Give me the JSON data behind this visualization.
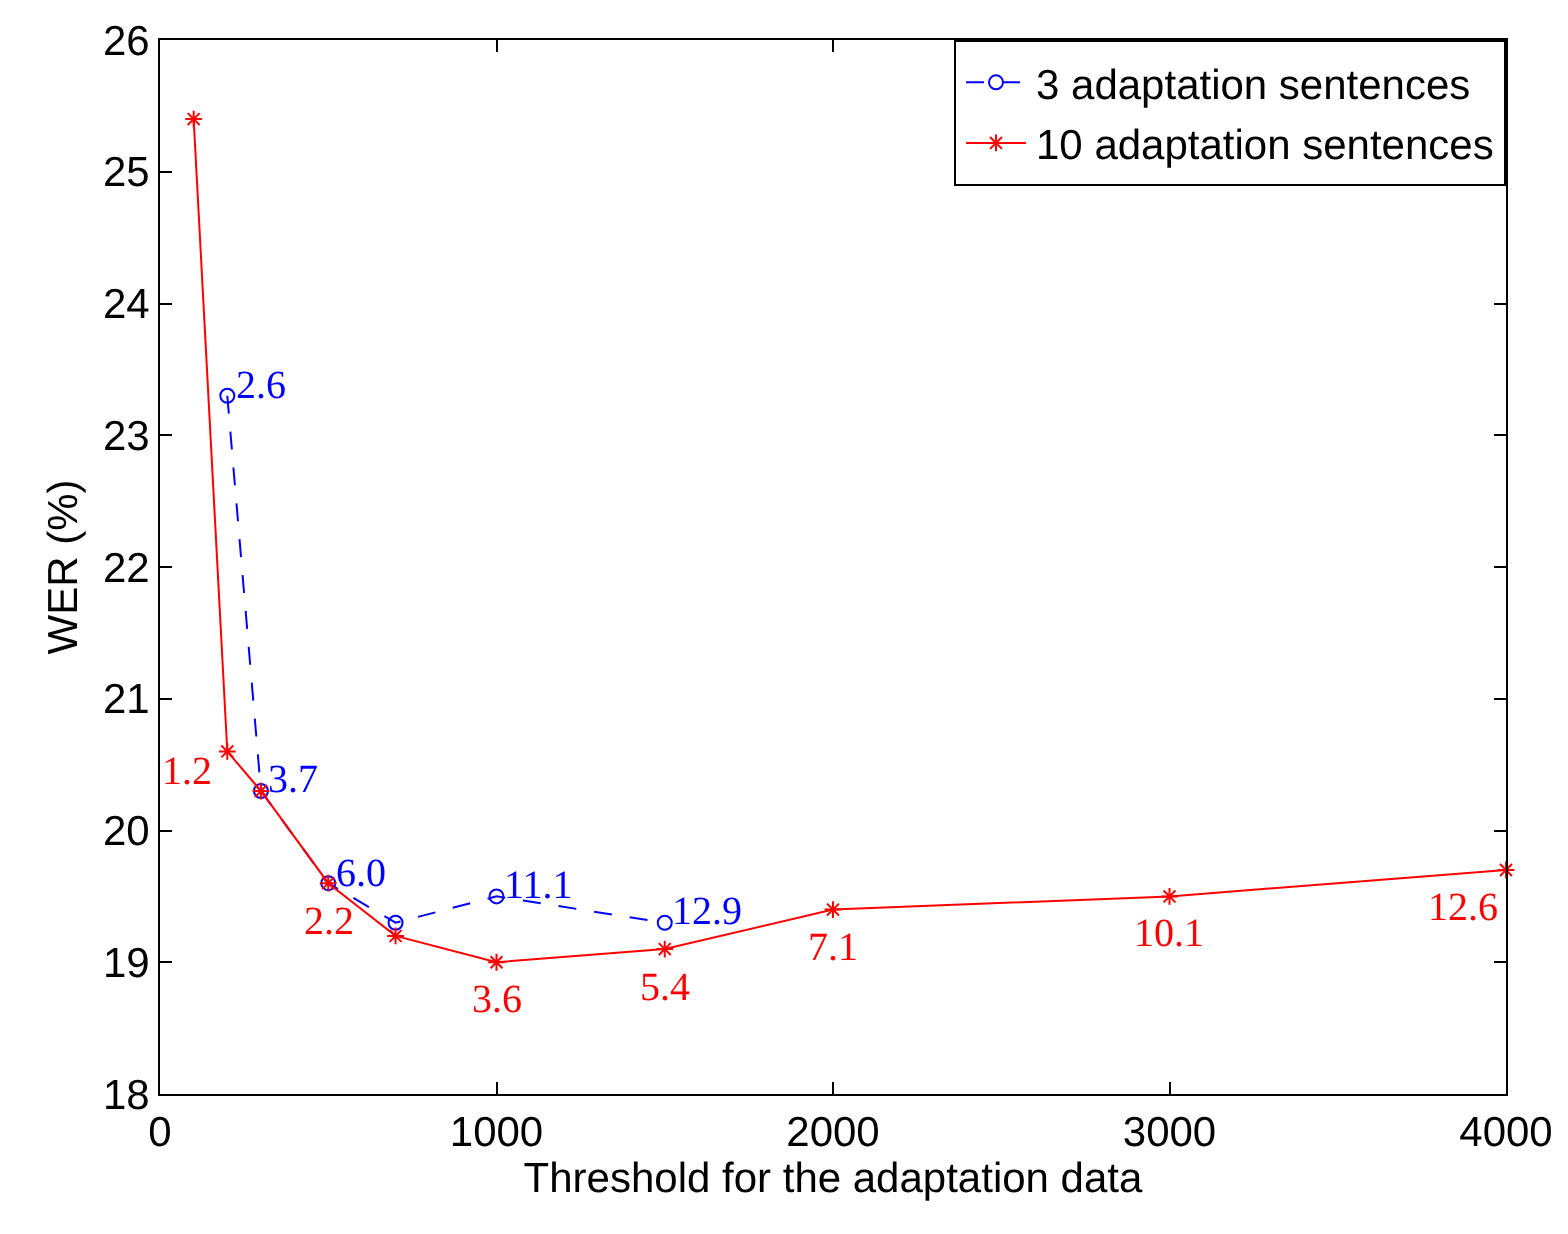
{
  "chart_data": {
    "type": "line",
    "xlabel": "Threshold for the adaptation data",
    "ylabel": "WER (%)",
    "xlim": [
      0,
      4000
    ],
    "xticks": [
      0,
      1000,
      2000,
      3000,
      4000
    ],
    "ylim": [
      18,
      26
    ],
    "yticks": [
      18,
      19,
      20,
      21,
      22,
      23,
      24,
      25,
      26
    ],
    "grid": false,
    "legend": "top right",
    "annotations": [
      {
        "text": "2.6",
        "x": 200,
        "y": 23.3
      },
      {
        "text": "3.7",
        "x": 300,
        "y": 20.3
      },
      {
        "text": "6.0",
        "x": 500,
        "y": 19.6
      },
      {
        "text": "11.1",
        "x": 1000,
        "y": 19.5
      },
      {
        "text": "12.9",
        "x": 1500,
        "y": 19.3
      },
      {
        "text": "1.2",
        "x": 200,
        "y": 20.6
      },
      {
        "text": "2.2",
        "x": 500,
        "y": 19.6
      },
      {
        "text": "3.6",
        "x": 1000,
        "y": 19.0
      },
      {
        "text": "5.4",
        "x": 1500,
        "y": 19.1
      },
      {
        "text": "7.1",
        "x": 2000,
        "y": 19.4
      },
      {
        "text": "10.1",
        "x": 3000,
        "y": 19.5
      },
      {
        "text": "12.6",
        "x": 4000,
        "y": 19.7
      }
    ],
    "series": [
      {
        "name": "3 adaptation sentences",
        "color": "#0000ff",
        "marker": "circle",
        "line_style": "dashed",
        "x": [
          200,
          300,
          500,
          700,
          1000,
          1500
        ],
        "values": [
          23.3,
          20.3,
          19.6,
          19.3,
          19.5,
          19.3
        ]
      },
      {
        "name": "10 adaptation sentences",
        "color": "#ff0000",
        "marker": "cross",
        "line_style": "solid",
        "x": [
          100,
          200,
          300,
          500,
          700,
          1000,
          1500,
          2000,
          3000,
          4000
        ],
        "values": [
          25.4,
          20.6,
          20.3,
          19.6,
          19.2,
          19.0,
          19.1,
          19.4,
          19.5,
          19.7
        ]
      }
    ]
  }
}
